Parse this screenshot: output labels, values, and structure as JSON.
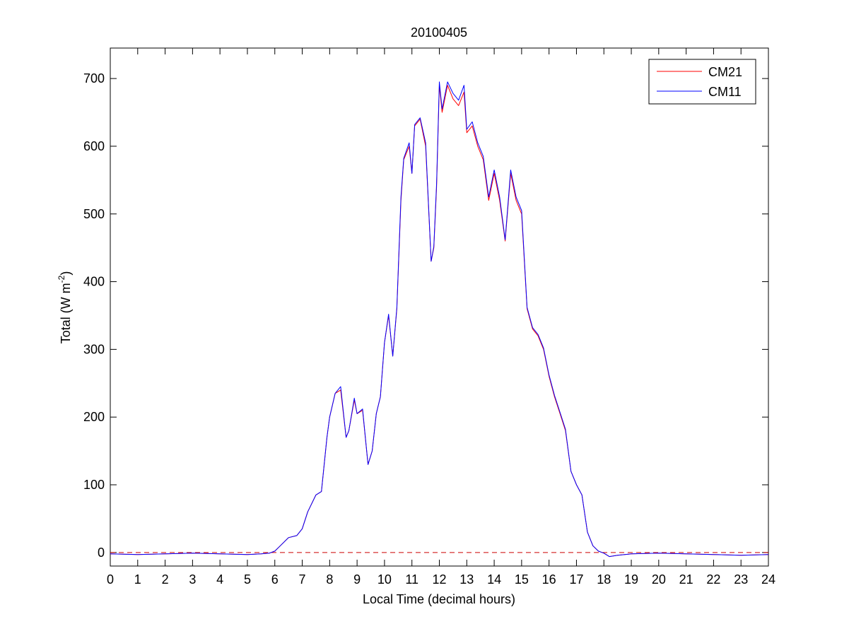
{
  "chart_data": {
    "type": "line",
    "title": "20100405",
    "xlabel": "Local Time (decimal hours)",
    "ylabel": {
      "base": "Total (W m",
      "sup": "-2",
      "tail": ")"
    },
    "xlim": [
      0,
      24
    ],
    "ylim": [
      -20,
      745
    ],
    "xticks": [
      0,
      1,
      2,
      3,
      4,
      5,
      6,
      7,
      8,
      9,
      10,
      11,
      12,
      13,
      14,
      15,
      16,
      17,
      18,
      19,
      20,
      21,
      22,
      23,
      24
    ],
    "yticks": [
      0,
      100,
      200,
      300,
      400,
      500,
      600,
      700
    ],
    "grid": false,
    "legend": {
      "placement": "top-right"
    },
    "reference_line": {
      "y": 0,
      "style": "dashed",
      "color": "#cc0000"
    },
    "series": [
      {
        "name": "CM21",
        "color": "#ff0000",
        "x": [
          0,
          1,
          2,
          3,
          4,
          5,
          5.5,
          5.8,
          6,
          6.2,
          6.5,
          6.8,
          7,
          7.2,
          7.5,
          7.7,
          7.9,
          8,
          8.2,
          8.4,
          8.6,
          8.7,
          8.9,
          9,
          9.2,
          9.4,
          9.55,
          9.7,
          9.85,
          10,
          10.15,
          10.3,
          10.45,
          10.6,
          10.7,
          10.9,
          11,
          11.1,
          11.3,
          11.5,
          11.7,
          11.8,
          11.9,
          12,
          12.1,
          12.3,
          12.5,
          12.7,
          12.9,
          13,
          13.2,
          13.4,
          13.6,
          13.8,
          14,
          14.2,
          14.4,
          14.6,
          14.8,
          15,
          15.2,
          15.4,
          15.6,
          15.8,
          16,
          16.2,
          16.4,
          16.6,
          16.8,
          17,
          17.2,
          17.4,
          17.6,
          17.8,
          18,
          18.2,
          18.5,
          19,
          20,
          21,
          22,
          23,
          24
        ],
        "y": [
          -2,
          -3,
          -2,
          -1,
          -2,
          -3,
          -2,
          -1,
          2,
          10,
          22,
          25,
          35,
          60,
          85,
          90,
          170,
          200,
          235,
          240,
          170,
          180,
          225,
          205,
          210,
          130,
          150,
          205,
          230,
          310,
          350,
          290,
          360,
          520,
          580,
          600,
          560,
          630,
          640,
          600,
          430,
          450,
          540,
          690,
          650,
          690,
          670,
          660,
          680,
          620,
          630,
          600,
          580,
          520,
          560,
          520,
          460,
          560,
          520,
          500,
          360,
          330,
          320,
          300,
          260,
          230,
          205,
          180,
          120,
          100,
          85,
          30,
          10,
          2,
          -1,
          -6,
          -4,
          -2,
          -1,
          -2,
          -3,
          -4,
          -3
        ]
      },
      {
        "name": "CM11",
        "color": "#0000ff",
        "x": [
          0,
          1,
          2,
          3,
          4,
          5,
          5.5,
          5.8,
          6,
          6.2,
          6.5,
          6.8,
          7,
          7.2,
          7.5,
          7.7,
          7.9,
          8,
          8.2,
          8.4,
          8.6,
          8.7,
          8.9,
          9,
          9.2,
          9.4,
          9.55,
          9.7,
          9.85,
          10,
          10.15,
          10.3,
          10.45,
          10.6,
          10.7,
          10.9,
          11,
          11.1,
          11.3,
          11.5,
          11.7,
          11.8,
          11.9,
          12,
          12.1,
          12.3,
          12.5,
          12.7,
          12.9,
          13,
          13.2,
          13.4,
          13.6,
          13.8,
          14,
          14.2,
          14.4,
          14.6,
          14.8,
          15,
          15.2,
          15.4,
          15.6,
          15.8,
          16,
          16.2,
          16.4,
          16.6,
          16.8,
          17,
          17.2,
          17.4,
          17.6,
          17.8,
          18,
          18.2,
          18.5,
          19,
          20,
          21,
          22,
          23,
          24
        ],
        "y": [
          -2,
          -3,
          -2,
          -1,
          -2,
          -3,
          -2,
          -1,
          2,
          10,
          22,
          25,
          35,
          60,
          85,
          90,
          170,
          200,
          235,
          245,
          170,
          180,
          228,
          205,
          212,
          130,
          150,
          205,
          230,
          310,
          352,
          290,
          362,
          525,
          582,
          605,
          560,
          632,
          642,
          605,
          430,
          452,
          545,
          695,
          655,
          695,
          678,
          668,
          690,
          625,
          636,
          605,
          585,
          525,
          565,
          525,
          462,
          565,
          525,
          505,
          362,
          332,
          322,
          302,
          262,
          232,
          207,
          182,
          120,
          100,
          85,
          30,
          10,
          2,
          -1,
          -6,
          -4,
          -2,
          -1,
          -2,
          -3,
          -4,
          -3
        ]
      }
    ]
  }
}
